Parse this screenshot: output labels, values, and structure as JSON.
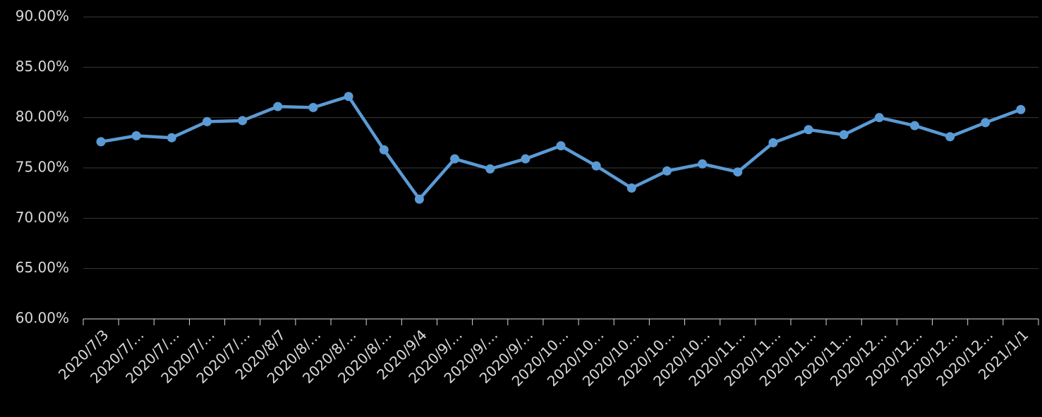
{
  "chart_data": {
    "type": "line",
    "categories": [
      "2020/7/3",
      "2020/7/…",
      "2020/7/…",
      "2020/7/…",
      "2020/7/…",
      "2020/8/7",
      "2020/8/…",
      "2020/8/…",
      "2020/8/…",
      "2020/9/4",
      "2020/9/…",
      "2020/9/…",
      "2020/9/…",
      "2020/10…",
      "2020/10…",
      "2020/10…",
      "2020/10…",
      "2020/10…",
      "2020/11…",
      "2020/11…",
      "2020/11…",
      "2020/11…",
      "2020/12…",
      "2020/12…",
      "2020/12…",
      "2020/12…",
      "2021/1/1"
    ],
    "values": [
      77.6,
      78.2,
      78.0,
      79.6,
      79.7,
      81.1,
      81.0,
      82.1,
      76.8,
      71.9,
      75.9,
      74.9,
      75.9,
      77.2,
      75.2,
      73.0,
      74.7,
      75.4,
      74.6,
      77.5,
      78.8,
      78.3,
      80.0,
      79.2,
      78.1,
      79.5,
      80.8
    ],
    "color": "#5b9bd5",
    "ylim": [
      60,
      90
    ],
    "yticks": [
      {
        "value": 60,
        "label": "60.00%"
      },
      {
        "value": 65,
        "label": "65.00%"
      },
      {
        "value": 70,
        "label": "70.00%"
      },
      {
        "value": 75,
        "label": "75.00%"
      },
      {
        "value": 80,
        "label": "80.00%"
      },
      {
        "value": 85,
        "label": "85.00%"
      },
      {
        "value": 90,
        "label": "90.00%"
      }
    ],
    "grid": true
  }
}
